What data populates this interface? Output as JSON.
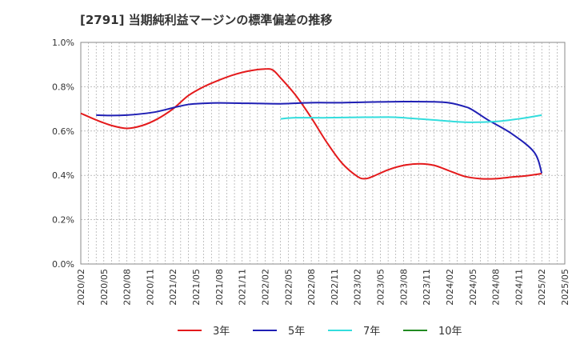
{
  "chart_data": {
    "type": "line",
    "title": "[2791]  当期純利益マージンの標準偏差の推移",
    "xlabel": "",
    "ylabel": "",
    "ylim": [
      0,
      1.0
    ],
    "ytick_labels": [
      "0.0%",
      "0.2%",
      "0.4%",
      "0.6%",
      "0.8%",
      "1.0%"
    ],
    "ytick_values": [
      0,
      0.2,
      0.4,
      0.6,
      0.8,
      1.0
    ],
    "x_start": "2020/02",
    "x_end": "2025/05",
    "xtick_labels": [
      "2020/02",
      "2020/05",
      "2020/08",
      "2020/11",
      "2021/02",
      "2021/05",
      "2021/08",
      "2021/11",
      "2022/02",
      "2022/05",
      "2022/08",
      "2022/11",
      "2023/02",
      "2023/05",
      "2023/08",
      "2023/11",
      "2024/02",
      "2024/05",
      "2024/08",
      "2024/11",
      "2025/02",
      "2025/05"
    ],
    "grid": true,
    "legend_position": "bottom",
    "series": [
      {
        "name": "3年",
        "color": "#e41a1c",
        "points": [
          [
            "2020/02",
            0.68
          ],
          [
            "2020/04",
            0.65
          ],
          [
            "2020/06",
            0.625
          ],
          [
            "2020/08",
            0.612
          ],
          [
            "2020/10",
            0.625
          ],
          [
            "2020/12",
            0.655
          ],
          [
            "2021/02",
            0.7
          ],
          [
            "2021/04",
            0.76
          ],
          [
            "2021/06",
            0.8
          ],
          [
            "2021/08",
            0.83
          ],
          [
            "2021/10",
            0.855
          ],
          [
            "2021/12",
            0.872
          ],
          [
            "2022/02",
            0.88
          ],
          [
            "2022/03",
            0.875
          ],
          [
            "2022/04",
            0.84
          ],
          [
            "2022/06",
            0.76
          ],
          [
            "2022/08",
            0.66
          ],
          [
            "2022/10",
            0.55
          ],
          [
            "2022/12",
            0.455
          ],
          [
            "2023/02",
            0.395
          ],
          [
            "2023/03",
            0.385
          ],
          [
            "2023/04",
            0.395
          ],
          [
            "2023/06",
            0.425
          ],
          [
            "2023/08",
            0.445
          ],
          [
            "2023/10",
            0.452
          ],
          [
            "2023/12",
            0.445
          ],
          [
            "2024/02",
            0.42
          ],
          [
            "2024/04",
            0.395
          ],
          [
            "2024/06",
            0.385
          ],
          [
            "2024/08",
            0.385
          ],
          [
            "2024/10",
            0.392
          ],
          [
            "2024/12",
            0.398
          ],
          [
            "2025/02",
            0.408
          ]
        ]
      },
      {
        "name": "5年",
        "color": "#1f1fb4",
        "points": [
          [
            "2020/04",
            0.672
          ],
          [
            "2020/06",
            0.67
          ],
          [
            "2020/08",
            0.672
          ],
          [
            "2020/10",
            0.678
          ],
          [
            "2020/12",
            0.688
          ],
          [
            "2021/02",
            0.705
          ],
          [
            "2021/04",
            0.72
          ],
          [
            "2021/06",
            0.725
          ],
          [
            "2021/08",
            0.727
          ],
          [
            "2021/12",
            0.725
          ],
          [
            "2022/04",
            0.723
          ],
          [
            "2022/08",
            0.728
          ],
          [
            "2022/12",
            0.728
          ],
          [
            "2023/04",
            0.731
          ],
          [
            "2023/08",
            0.733
          ],
          [
            "2023/12",
            0.732
          ],
          [
            "2024/02",
            0.727
          ],
          [
            "2024/04",
            0.71
          ],
          [
            "2024/05",
            0.695
          ],
          [
            "2024/07",
            0.65
          ],
          [
            "2024/10",
            0.59
          ],
          [
            "2025/01",
            0.505
          ],
          [
            "2025/02",
            0.41
          ]
        ]
      },
      {
        "name": "7年",
        "color": "#33dddd",
        "points": [
          [
            "2022/04",
            0.655
          ],
          [
            "2022/06",
            0.66
          ],
          [
            "2022/10",
            0.66
          ],
          [
            "2023/02",
            0.662
          ],
          [
            "2023/06",
            0.663
          ],
          [
            "2023/08",
            0.66
          ],
          [
            "2023/12",
            0.65
          ],
          [
            "2024/04",
            0.64
          ],
          [
            "2024/08",
            0.643
          ],
          [
            "2024/11",
            0.655
          ],
          [
            "2025/02",
            0.672
          ]
        ]
      },
      {
        "name": "10年",
        "color": "#228b22",
        "points": []
      }
    ]
  }
}
